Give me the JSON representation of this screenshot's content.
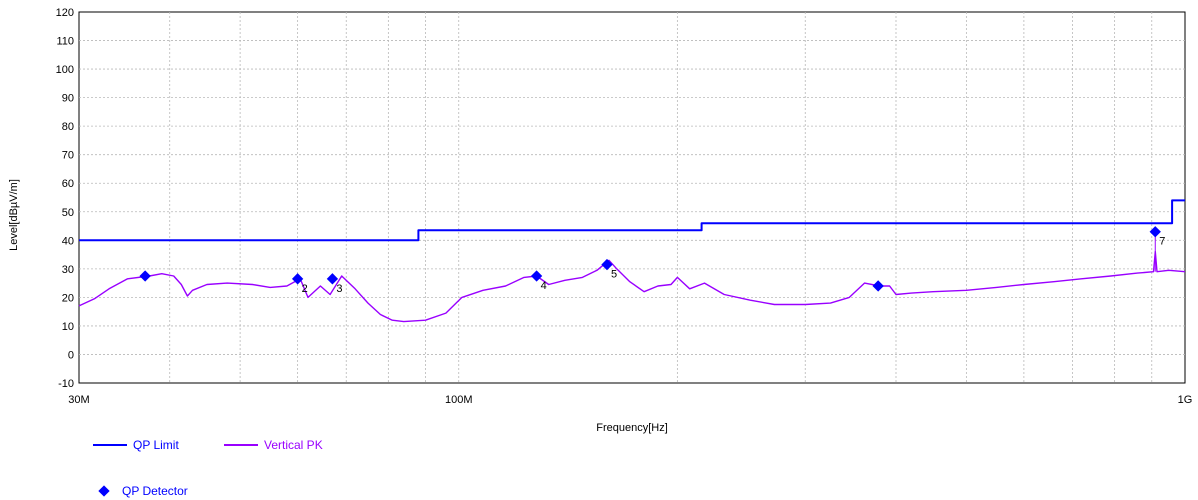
{
  "chart_data": {
    "type": "line",
    "xlabel": "Frequency[Hz]",
    "ylabel": "Level[dBµV/m]",
    "xscale": "log",
    "xlim": [
      30000000,
      1000000000
    ],
    "ylim": [
      -10,
      120
    ],
    "yticks": [
      -10,
      0,
      10,
      20,
      30,
      40,
      50,
      60,
      70,
      80,
      90,
      100,
      110,
      120
    ],
    "xtick_labels": [
      {
        "value": 30000000,
        "label": "30M"
      },
      {
        "value": 100000000,
        "label": "100M"
      },
      {
        "value": 1000000000,
        "label": "1G"
      }
    ],
    "grid": true,
    "legend_position": "bottom-left",
    "series": [
      {
        "name": "QP Limit",
        "color": "#0000ff",
        "style": "step",
        "points": [
          [
            30000000,
            40
          ],
          [
            88000000,
            40
          ],
          [
            88000000,
            43.5
          ],
          [
            216000000,
            43.5
          ],
          [
            216000000,
            46
          ],
          [
            960000000,
            46
          ],
          [
            960000000,
            54
          ],
          [
            1000000000,
            54
          ]
        ]
      },
      {
        "name": "Vertical PK",
        "color": "#9900ff",
        "style": "line",
        "points": [
          [
            30000000,
            17
          ],
          [
            31500000,
            19.5
          ],
          [
            33000000,
            23
          ],
          [
            35000000,
            26.5
          ],
          [
            37500000,
            27.5
          ],
          [
            39000000,
            28.3
          ],
          [
            40500000,
            27.5
          ],
          [
            41500000,
            24.5
          ],
          [
            42300000,
            20.5
          ],
          [
            43000000,
            22.5
          ],
          [
            45000000,
            24.5
          ],
          [
            48000000,
            25
          ],
          [
            52000000,
            24.5
          ],
          [
            55000000,
            23.5
          ],
          [
            58000000,
            24
          ],
          [
            60500000,
            26.5
          ],
          [
            62000000,
            20
          ],
          [
            64500000,
            24
          ],
          [
            66500000,
            21
          ],
          [
            69000000,
            27.5
          ],
          [
            72000000,
            23
          ],
          [
            75000000,
            18
          ],
          [
            78000000,
            14
          ],
          [
            81000000,
            12
          ],
          [
            84000000,
            11.5
          ],
          [
            90000000,
            12
          ],
          [
            96000000,
            14.5
          ],
          [
            101000000,
            20
          ],
          [
            108000000,
            22.5
          ],
          [
            116000000,
            24
          ],
          [
            123000000,
            27
          ],
          [
            128000000,
            27.5
          ],
          [
            133000000,
            24.5
          ],
          [
            140000000,
            26
          ],
          [
            148000000,
            27
          ],
          [
            155000000,
            29.5
          ],
          [
            161000000,
            33
          ],
          [
            165000000,
            30
          ],
          [
            172000000,
            25.5
          ],
          [
            180000000,
            22
          ],
          [
            188000000,
            24
          ],
          [
            196000000,
            24.5
          ],
          [
            200000000,
            27
          ],
          [
            208000000,
            23
          ],
          [
            218000000,
            25
          ],
          [
            232000000,
            21
          ],
          [
            252000000,
            19
          ],
          [
            272000000,
            17.5
          ],
          [
            300000000,
            17.5
          ],
          [
            325000000,
            18
          ],
          [
            345000000,
            20
          ],
          [
            362000000,
            25
          ],
          [
            380000000,
            24
          ],
          [
            392000000,
            24
          ],
          [
            400000000,
            21
          ],
          [
            420000000,
            21.5
          ],
          [
            450000000,
            22
          ],
          [
            500000000,
            22.5
          ],
          [
            550000000,
            23.5
          ],
          [
            600000000,
            24.5
          ],
          [
            660000000,
            25.5
          ],
          [
            720000000,
            26.5
          ],
          [
            790000000,
            27.5
          ],
          [
            860000000,
            28.5
          ],
          [
            905000000,
            29
          ],
          [
            910000000,
            36
          ],
          [
            915000000,
            29
          ],
          [
            950000000,
            29.5
          ],
          [
            1000000000,
            29
          ]
        ]
      },
      {
        "name": "QP Detector",
        "color": "#0000ff",
        "style": "marker",
        "points": [
          {
            "x": 37000000,
            "y": 27.5,
            "label": ""
          },
          {
            "x": 60000000,
            "y": 26.5,
            "label": "2"
          },
          {
            "x": 67000000,
            "y": 26.5,
            "label": "3"
          },
          {
            "x": 128000000,
            "y": 27.5,
            "label": "4"
          },
          {
            "x": 160000000,
            "y": 31.5,
            "label": "5"
          },
          {
            "x": 378000000,
            "y": 24,
            "label": ""
          },
          {
            "x": 910000000,
            "y": 43,
            "label": "7"
          }
        ]
      }
    ]
  },
  "legend": {
    "qp_limit": "QP Limit",
    "vertical_pk": "Vertical PK",
    "qp_detector": "QP Detector"
  }
}
